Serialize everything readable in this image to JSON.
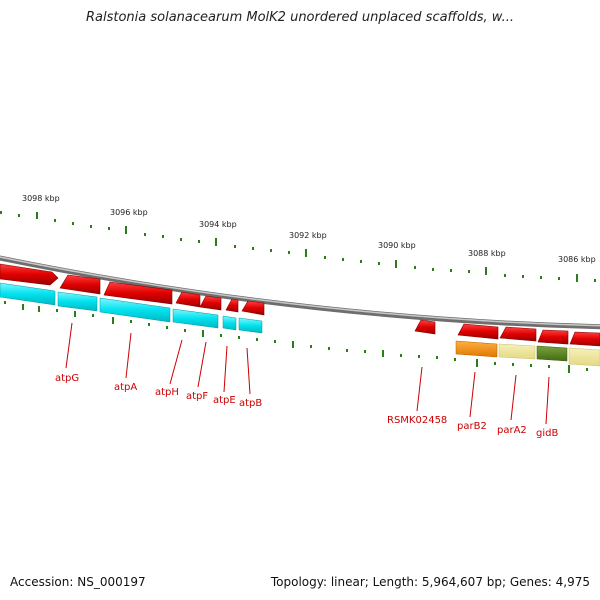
{
  "title": "Ralstonia solanacearum MolK2 unordered unplaced scaffolds, w...",
  "footer": {
    "accession": "Accession: NS_000197",
    "summary": "Topology: linear; Length: 5,964,607 bp; Genes: 4,975"
  },
  "ruler": [
    {
      "label": "3098 kbp"
    },
    {
      "label": "3096 kbp"
    },
    {
      "label": "3094 kbp"
    },
    {
      "label": "3092 kbp"
    },
    {
      "label": "3090 kbp"
    },
    {
      "label": "3088 kbp"
    },
    {
      "label": "3086 kbp"
    }
  ],
  "genes": [
    {
      "label": "atpG"
    },
    {
      "label": "atpA"
    },
    {
      "label": "atpH"
    },
    {
      "label": "atpF"
    },
    {
      "label": "atpE"
    },
    {
      "label": "atpB"
    },
    {
      "label": "RSMK02458"
    },
    {
      "label": "parB2"
    },
    {
      "label": "parA2"
    },
    {
      "label": "gidB"
    }
  ],
  "colors": {
    "gene_red": "#e60000",
    "gene_dark": "#990000",
    "cyan": "#00e5f0",
    "orange": "#ff8c00",
    "khaki": "#eee69a",
    "olive": "#5e8a1e",
    "tick_green": "#2a7d1a",
    "backbone": "#888888"
  }
}
